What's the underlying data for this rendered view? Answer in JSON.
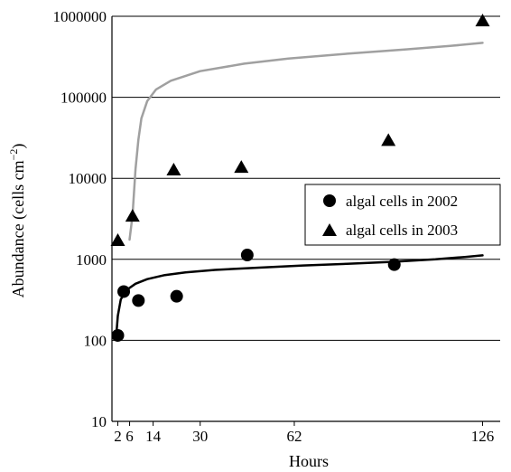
{
  "chart_data": {
    "type": "scatter",
    "xlabel": "Hours",
    "ylabel": "Abundance (cells cm",
    "ylabel_exponent": "−2",
    "ylabel_close": ")",
    "x_scale": "linear",
    "y_scale": "log",
    "xlim": [
      0,
      132
    ],
    "ylim": [
      10,
      1000000
    ],
    "x_ticks": [
      2,
      6,
      14,
      30,
      62,
      126
    ],
    "x_tick_labels": [
      "2",
      "6",
      "14",
      "30",
      "62",
      "126"
    ],
    "y_ticks": [
      10,
      100,
      1000,
      10000,
      100000,
      1000000
    ],
    "y_tick_labels": [
      "10",
      "100",
      "1000",
      "10000",
      "100000",
      "1000000"
    ],
    "grid": "horizontal",
    "legend_position": "right-middle",
    "series": [
      {
        "name": "algal cells in 2002",
        "marker": "circle",
        "color": "#000000",
        "points": [
          {
            "x": 2,
            "y": 115
          },
          {
            "x": 4,
            "y": 400
          },
          {
            "x": 9,
            "y": 310
          },
          {
            "x": 22,
            "y": 350
          },
          {
            "x": 46,
            "y": 1130
          },
          {
            "x": 96,
            "y": 860
          }
        ]
      },
      {
        "name": "algal cells in 2003",
        "marker": "triangle",
        "color": "#000000",
        "points": [
          {
            "x": 2,
            "y": 1750
          },
          {
            "x": 7,
            "y": 3500
          },
          {
            "x": 21,
            "y": 13000
          },
          {
            "x": 44,
            "y": 14000
          },
          {
            "x": 94,
            "y": 30000
          },
          {
            "x": 126,
            "y": 900000
          }
        ]
      }
    ],
    "fit_lines": [
      {
        "color": "#000000",
        "points": [
          [
            1.5,
            120
          ],
          [
            2,
            200
          ],
          [
            3,
            320
          ],
          [
            5,
            420
          ],
          [
            8,
            500
          ],
          [
            12,
            570
          ],
          [
            18,
            640
          ],
          [
            25,
            690
          ],
          [
            35,
            740
          ],
          [
            50,
            790
          ],
          [
            65,
            840
          ],
          [
            80,
            880
          ],
          [
            95,
            930
          ],
          [
            110,
            1000
          ],
          [
            120,
            1070
          ],
          [
            126,
            1120
          ]
        ]
      },
      {
        "color": "#a0a0a0",
        "points": [
          [
            6,
            1750
          ],
          [
            7,
            3500
          ],
          [
            8,
            13000
          ],
          [
            9,
            30000
          ],
          [
            10,
            55000
          ],
          [
            12,
            90000
          ],
          [
            15,
            125000
          ],
          [
            20,
            160000
          ],
          [
            30,
            210000
          ],
          [
            45,
            260000
          ],
          [
            60,
            300000
          ],
          [
            80,
            345000
          ],
          [
            100,
            390000
          ],
          [
            115,
            430000
          ],
          [
            126,
            470000
          ]
        ]
      }
    ]
  }
}
